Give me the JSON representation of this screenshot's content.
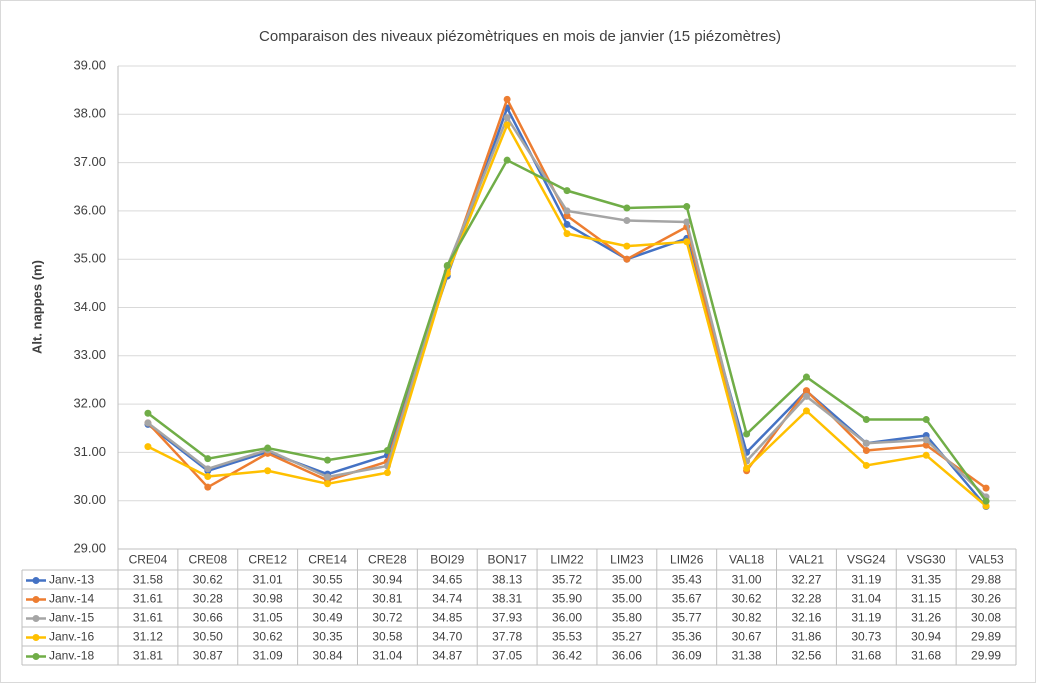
{
  "chart_data": {
    "type": "line",
    "title": "Comparaison des niveaux piézomètriques en mois de janvier (15 piézomètres)",
    "y_label": "Alt. nappes (m)",
    "categories": [
      "CRE04",
      "CRE08",
      "CRE12",
      "CRE14",
      "CRE28",
      "BOI29",
      "BON17",
      "LIM22",
      "LIM23",
      "LIM26",
      "VAL18",
      "VAL21",
      "VSG24",
      "VSG30",
      "VAL53"
    ],
    "series": [
      {
        "name": "Janv.-13",
        "color": "#4472c4",
        "values": [
          31.58,
          30.62,
          31.01,
          30.55,
          30.94,
          34.65,
          38.13,
          35.72,
          35,
          35.43,
          31,
          32.27,
          31.19,
          31.35,
          29.88
        ],
        "value_labels": [
          "31.58",
          "30.62",
          "31.01",
          "30.55",
          "30.94",
          "34.65",
          "38.13",
          "35.72",
          "35.00",
          "35.43",
          "31.00",
          "32.27",
          "31.19",
          "31.35",
          "29.88"
        ]
      },
      {
        "name": "Janv.-14",
        "color": "#ed7d31",
        "values": [
          31.61,
          30.28,
          30.98,
          30.42,
          30.81,
          34.74,
          38.31,
          35.9,
          35,
          35.67,
          30.62,
          32.28,
          31.04,
          31.15,
          30.26
        ],
        "value_labels": [
          "31.61",
          "30.28",
          "30.98",
          "30.42",
          "30.81",
          "34.74",
          "38.31",
          "35.90",
          "35.00",
          "35.67",
          "30.62",
          "32.28",
          "31.04",
          "31.15",
          "30.26"
        ]
      },
      {
        "name": "Janv.-15",
        "color": "#a5a5a5",
        "values": [
          31.61,
          30.66,
          31.05,
          30.49,
          30.72,
          34.85,
          37.93,
          36,
          35.8,
          35.77,
          30.82,
          32.16,
          31.19,
          31.26,
          30.08
        ],
        "value_labels": [
          "31.61",
          "30.66",
          "31.05",
          "30.49",
          "30.72",
          "34.85",
          "37.93",
          "36.00",
          "35.80",
          "35.77",
          "30.82",
          "32.16",
          "31.19",
          "31.26",
          "30.08"
        ]
      },
      {
        "name": "Janv.-16",
        "color": "#ffc000",
        "values": [
          31.12,
          30.5,
          30.62,
          30.35,
          30.58,
          34.7,
          37.78,
          35.53,
          35.27,
          35.36,
          30.67,
          31.86,
          30.73,
          30.94,
          29.89
        ],
        "value_labels": [
          "31.12",
          "30.50",
          "30.62",
          "30.35",
          "30.58",
          "34.70",
          "37.78",
          "35.53",
          "35.27",
          "35.36",
          "30.67",
          "31.86",
          "30.73",
          "30.94",
          "29.89"
        ]
      },
      {
        "name": "Janv.-18",
        "color": "#70ad47",
        "values": [
          31.81,
          30.87,
          31.09,
          30.84,
          31.04,
          34.87,
          37.05,
          36.42,
          36.06,
          36.09,
          31.38,
          32.56,
          31.68,
          31.68,
          29.99
        ],
        "value_labels": [
          "31.81",
          "30.87",
          "31.09",
          "30.84",
          "31.04",
          "34.87",
          "37.05",
          "36.42",
          "36.06",
          "36.09",
          "31.38",
          "32.56",
          "31.68",
          "31.68",
          "29.99"
        ]
      }
    ],
    "ylim": [
      29,
      39
    ],
    "yticks": [
      {
        "value": 29,
        "label": "29.00"
      },
      {
        "value": 30,
        "label": "30.00"
      },
      {
        "value": 31,
        "label": "31.00"
      },
      {
        "value": 32,
        "label": "32.00"
      },
      {
        "value": 33,
        "label": "33.00"
      },
      {
        "value": 34,
        "label": "34.00"
      },
      {
        "value": 35,
        "label": "35.00"
      },
      {
        "value": 36,
        "label": "36.00"
      },
      {
        "value": 37,
        "label": "37.00"
      },
      {
        "value": 38,
        "label": "38.00"
      },
      {
        "value": 39,
        "label": "39.00"
      }
    ],
    "grid": true
  }
}
